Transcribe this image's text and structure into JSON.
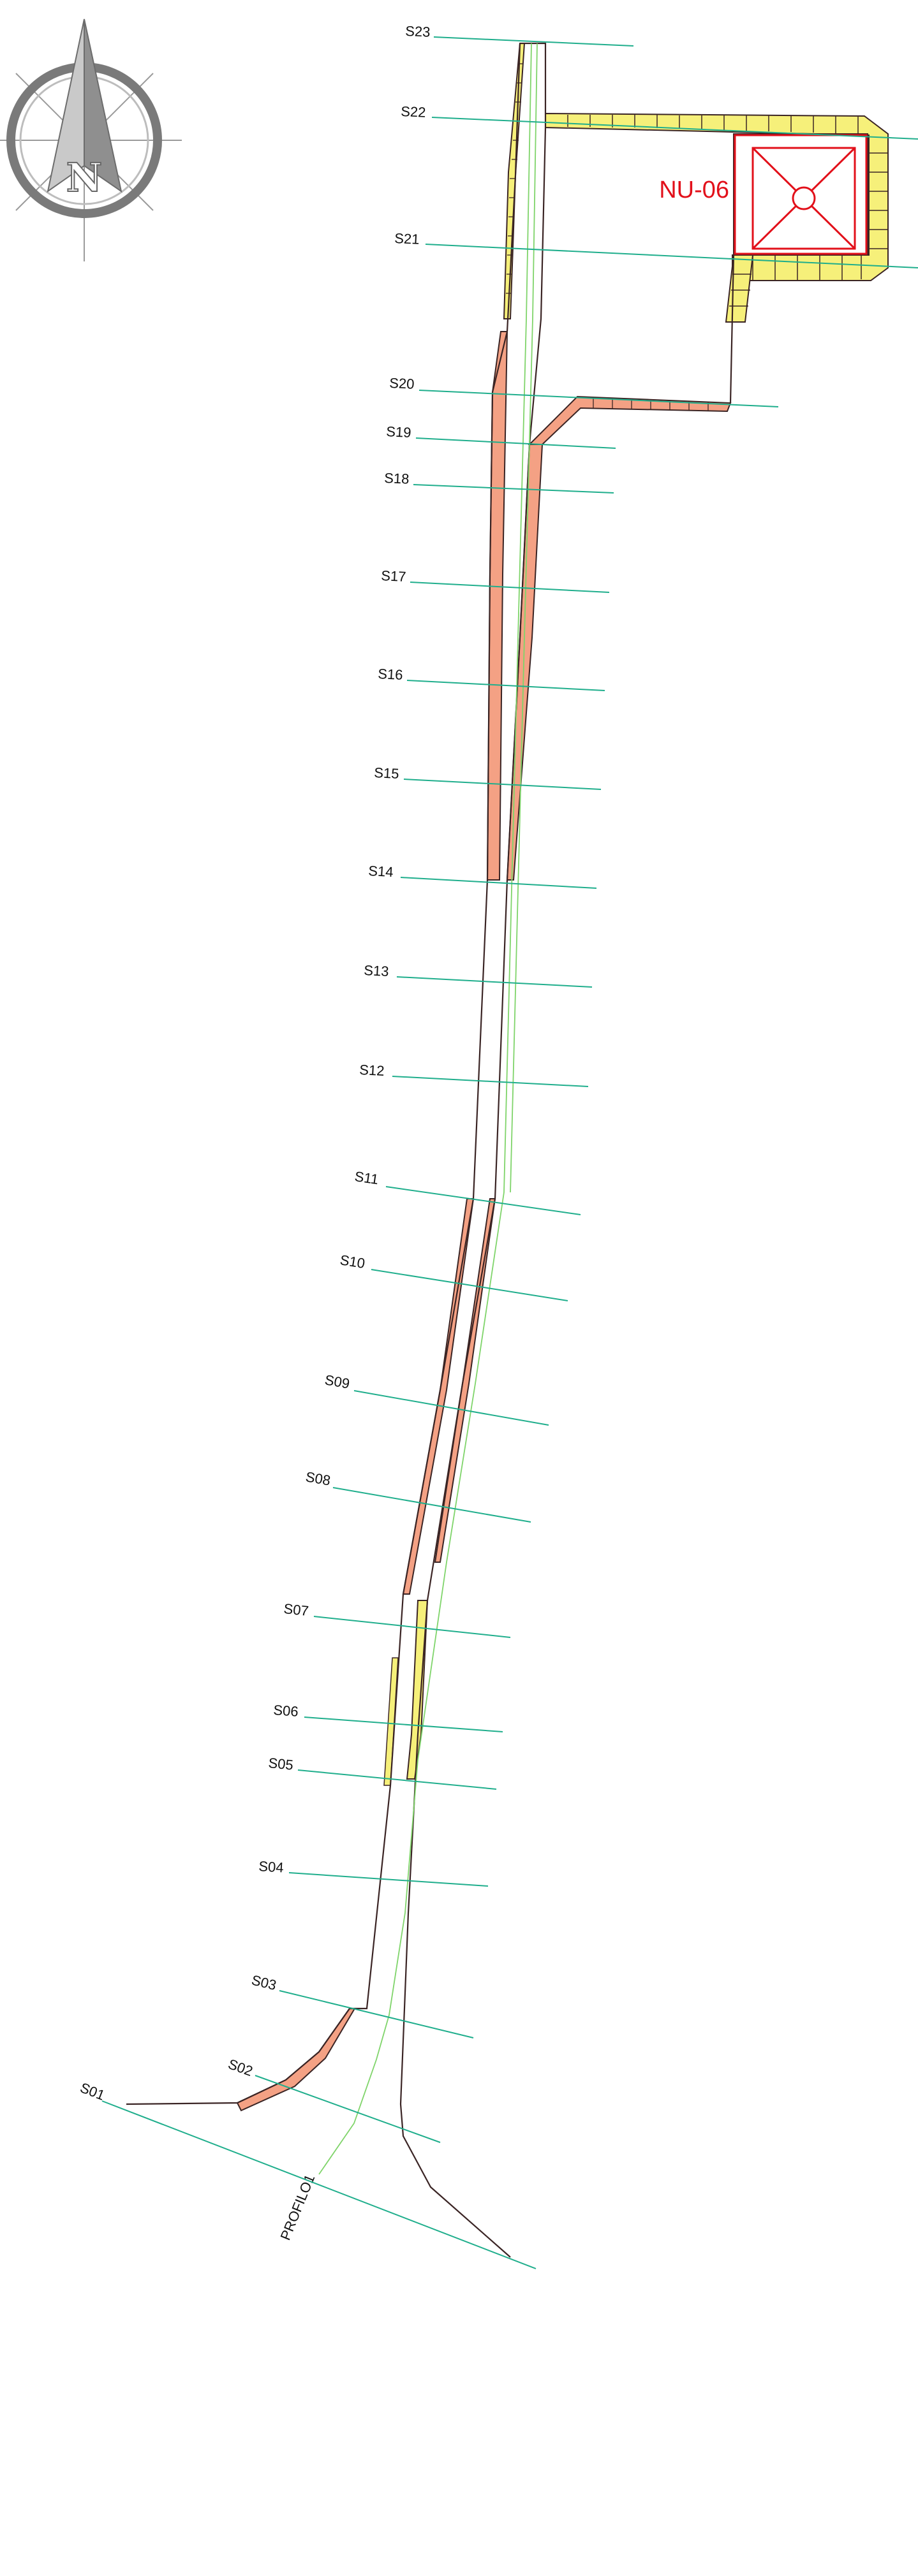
{
  "colors": {
    "section_line": "#1fae8c",
    "axis_line": "#7fd46a",
    "fill_red": "#f4a184",
    "fill_yellow": "#f6f07a",
    "outline": "#3a2424",
    "structure": "#e2101a",
    "compass_ring": "#7a7a7a"
  },
  "compass": {
    "north_letter": "N",
    "icon": "compass-rose-icon"
  },
  "structure": {
    "label": "NU-06",
    "icon": "manhole-structure-icon"
  },
  "profile": {
    "label": "PROFILO1"
  },
  "sections": [
    "S23",
    "S22",
    "S21",
    "S20",
    "S19",
    "S18",
    "S17",
    "S16",
    "S15",
    "S14",
    "S13",
    "S12",
    "S11",
    "S10",
    "S09",
    "S08",
    "S07",
    "S06",
    "S05",
    "S04",
    "S03",
    "S02",
    "S01"
  ]
}
